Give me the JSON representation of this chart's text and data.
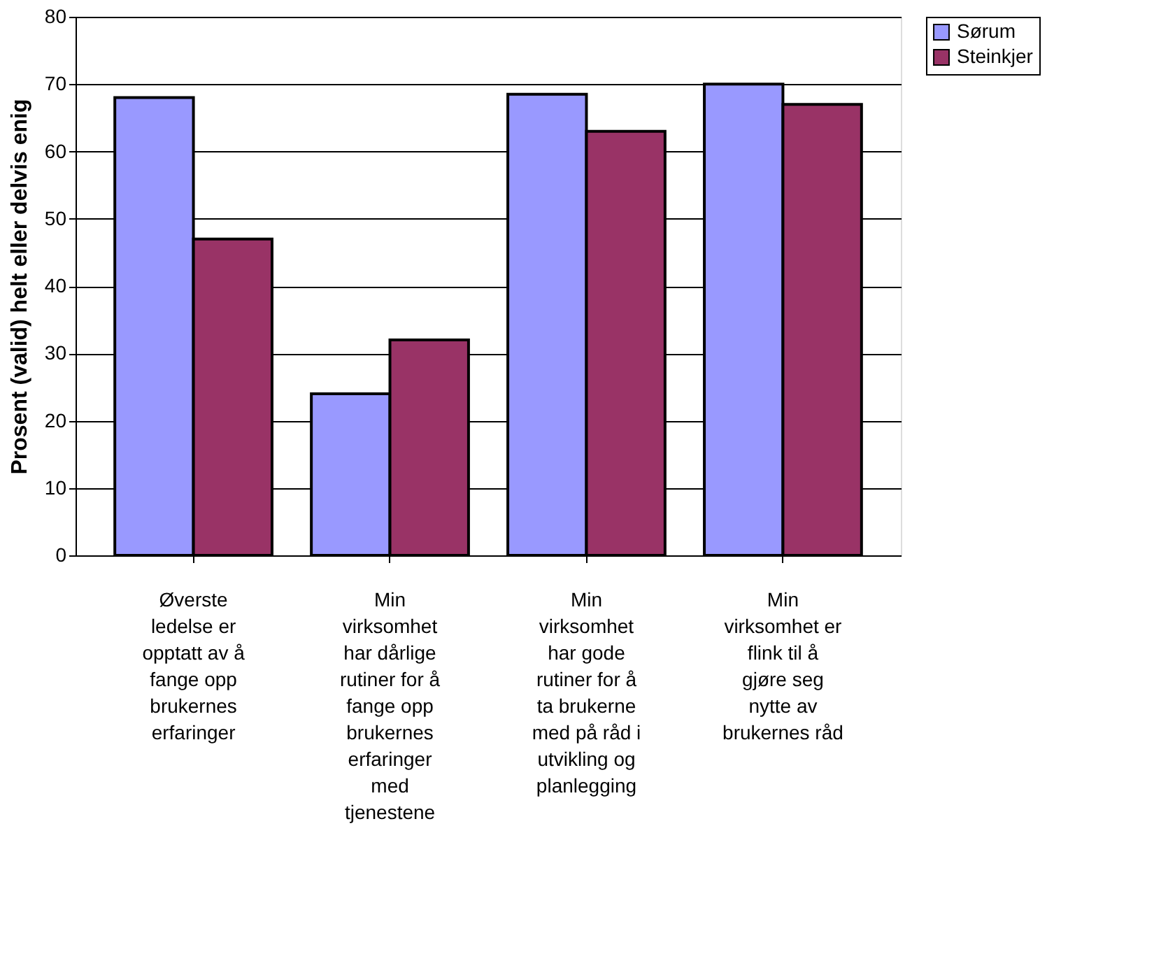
{
  "chart_data": {
    "type": "bar",
    "ylabel": "Prosent (valid) helt eller delvis enig",
    "categories": [
      "Øverste ledelse er opptatt av å fange opp brukernes erfaringer",
      "Min virksomhet har dårlige rutiner for å fange opp brukernes erfaringer med tjenestene",
      "Min virksomhet har gode rutiner for å ta brukerne med på råd i utvikling og planlegging",
      "Min virksomhet er flink til å gjøre seg nytte av brukernes råd"
    ],
    "series": [
      {
        "name": "Sørum",
        "color": "#9999ff",
        "values": [
          68,
          24,
          68.5,
          70
        ]
      },
      {
        "name": "Steinkjer",
        "color": "#993366",
        "values": [
          47,
          32,
          63,
          67
        ]
      }
    ],
    "ylim": [
      0,
      80
    ],
    "yticks": [
      0,
      10,
      20,
      30,
      40,
      50,
      60,
      70,
      80
    ],
    "grid": "y",
    "legend": "right"
  }
}
